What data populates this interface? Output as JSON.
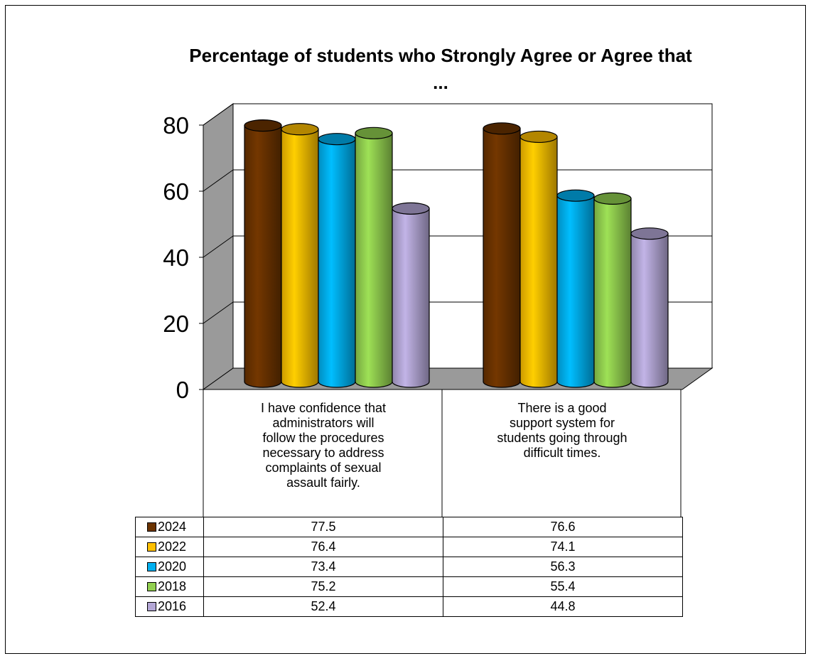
{
  "chart_data": {
    "type": "bar",
    "title": "Percentage of students who Strongly Agree or Agree that",
    "title_cont": "...",
    "categories": [
      "I have confidence that administrators will follow the procedures necessary to address complaints of sexual assault fairly.",
      "There is a good support system for students going through difficult times."
    ],
    "category_lines": [
      [
        "I have confidence that",
        "administrators will",
        "follow the procedures",
        "necessary to address",
        "complaints of sexual",
        "assault fairly."
      ],
      [
        "There is a good",
        "support system for",
        "students going through",
        "difficult times."
      ]
    ],
    "series": [
      {
        "name": "2024",
        "values": [
          77.5,
          76.6
        ],
        "color": "#6B3300"
      },
      {
        "name": "2022",
        "values": [
          76.4,
          74.1
        ],
        "color": "#FFC000"
      },
      {
        "name": "2020",
        "values": [
          73.4,
          56.3
        ],
        "color": "#00B0F0"
      },
      {
        "name": "2018",
        "values": [
          75.2,
          55.4
        ],
        "color": "#92D050"
      },
      {
        "name": "2016",
        "values": [
          52.4,
          44.8
        ],
        "color": "#B4A7D6"
      }
    ],
    "yticks": [
      "0",
      "20",
      "40",
      "60",
      "80"
    ],
    "ylim": [
      0,
      80
    ],
    "grid": true,
    "legend": "data table",
    "style": "3d-cylinder"
  }
}
